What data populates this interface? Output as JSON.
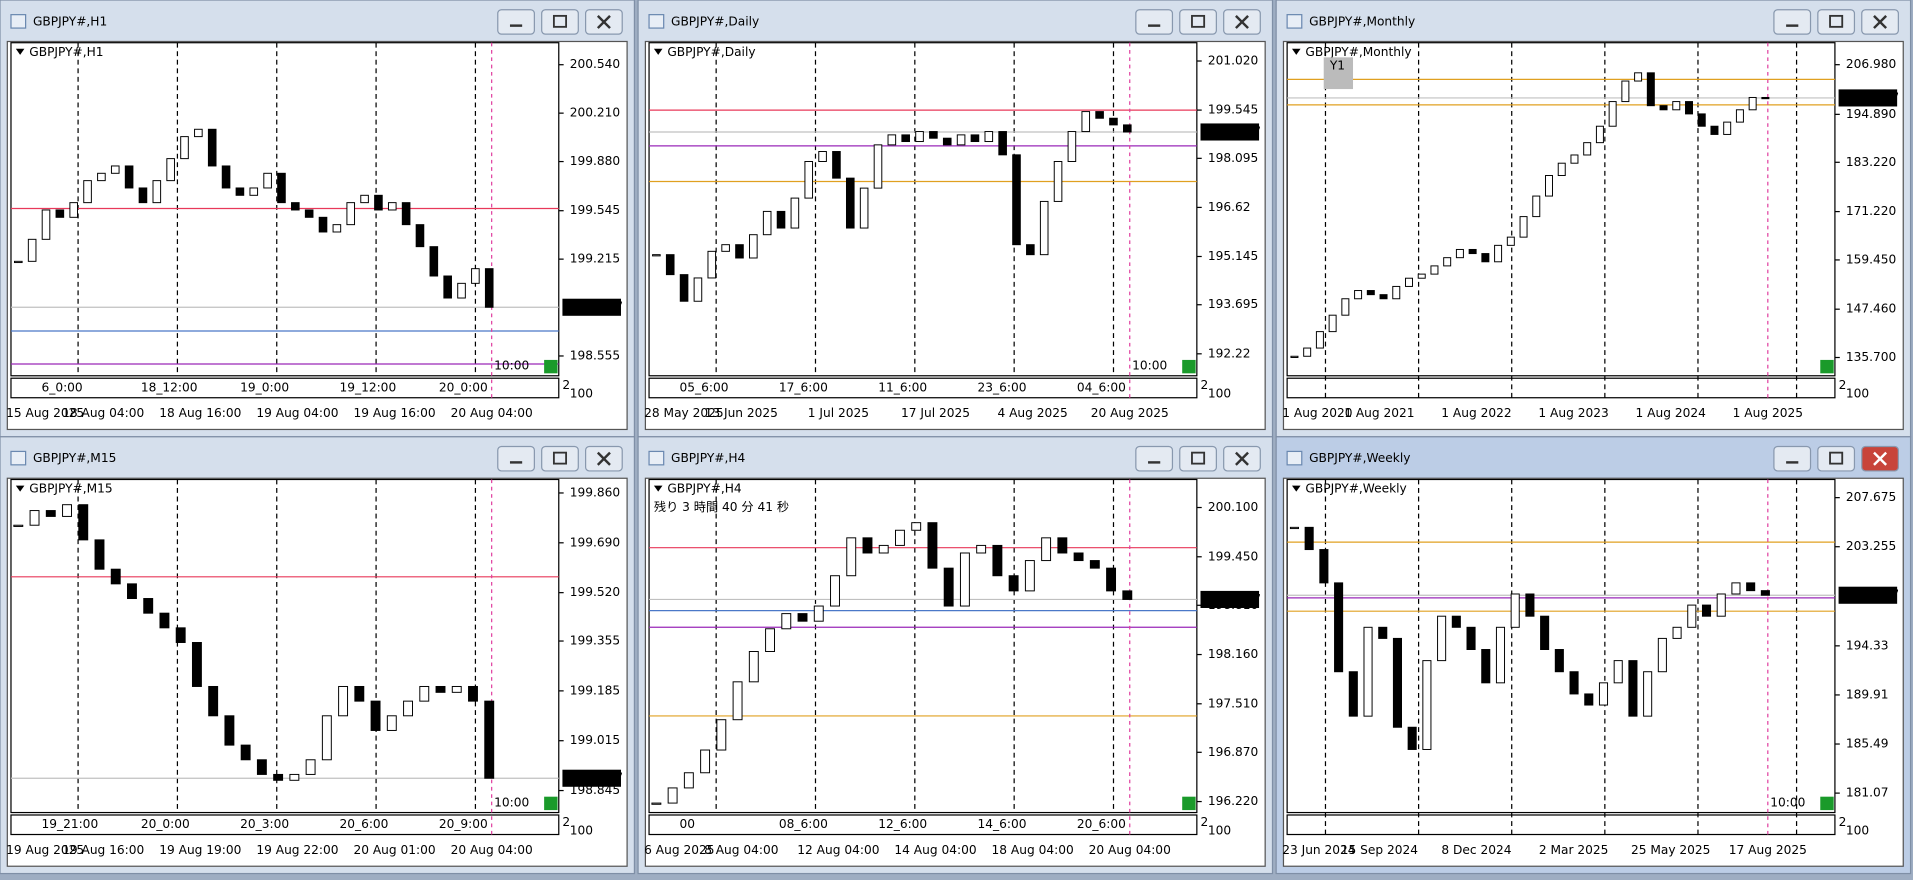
{
  "windows": [
    {
      "title": "GBPJPY#,H1",
      "active": false,
      "ylim": [
        198.42,
        200.69
      ],
      "yticks": [
        {
          "value": 200.54,
          "label": "200.540"
        },
        {
          "value": 200.21,
          "label": "200.210"
        },
        {
          "value": 199.88,
          "label": "199.880"
        },
        {
          "value": 199.545,
          "label": "199.545"
        },
        {
          "value": 199.215,
          "label": "199.215"
        },
        {
          "value": 198.555,
          "label": "198.555"
        }
      ],
      "current_price": 198.887,
      "levels": [
        {
          "value": 199.56,
          "color": "#e8385a"
        },
        {
          "value": 198.725,
          "color": "#4a78c8"
        },
        {
          "value": 198.5,
          "color": "#9a28b8"
        }
      ],
      "closes": [
        199.2,
        199.35,
        199.55,
        199.5,
        199.6,
        199.75,
        199.8,
        199.85,
        199.7,
        199.6,
        199.75,
        199.9,
        200.05,
        200.1,
        199.85,
        199.7,
        199.65,
        199.7,
        199.8,
        199.6,
        199.55,
        199.5,
        199.4,
        199.45,
        199.6,
        199.65,
        199.55,
        199.6,
        199.45,
        199.3,
        199.1,
        198.95,
        199.05,
        199.15,
        198.887
      ],
      "inner_time_labels": [
        "6_0:00",
        "18_12:00",
        "19_0:00",
        "19_12:00",
        "20_0:00"
      ],
      "time_labels": [
        "15 Aug 2025",
        "18 Aug 04:00",
        "18 Aug 16:00",
        "19 Aug 04:00",
        "19 Aug 16:00",
        "20 Aug 04:00"
      ],
      "timer": "10:00",
      "corner_labels": [
        "2",
        "100"
      ]
    },
    {
      "title": "GBPJPY#,Daily",
      "active": false,
      "ylim": [
        191.56,
        201.57
      ],
      "yticks": [
        {
          "value": 201.02,
          "label": "201.020"
        },
        199.545,
        198.095,
        196.62,
        195.145,
        193.695,
        192.22
      ],
      "current_price": 198.887,
      "levels": [
        {
          "value": 199.545,
          "color": "#e8385a"
        },
        {
          "value": 198.47,
          "color": "#9a28b8"
        },
        {
          "value": 197.4,
          "color": "#e0a020"
        }
      ],
      "closes": [
        195.2,
        194.6,
        193.8,
        194.5,
        195.3,
        195.5,
        195.1,
        195.8,
        196.5,
        196.0,
        196.9,
        198.0,
        198.3,
        197.5,
        196.0,
        197.2,
        198.5,
        198.8,
        198.6,
        198.9,
        198.7,
        198.5,
        198.8,
        198.6,
        198.9,
        198.2,
        195.5,
        195.2,
        196.8,
        198.0,
        198.9,
        199.5,
        199.3,
        199.1,
        198.887
      ],
      "inner_time_labels": [
        "05_6:00",
        "17_6:00",
        "11_6:00",
        "23_6:00",
        "04_6:00"
      ],
      "time_labels": [
        "28 May 2025",
        "13 Jun 2025",
        "1 Jul 2025",
        "17 Jul 2025",
        "4 Aug 2025",
        "20 Aug 2025"
      ],
      "timer": "10:00",
      "corner_labels": [
        "2",
        "100"
      ]
    },
    {
      "title": "GBPJPY#,Monthly",
      "active": false,
      "ylim": [
        131.25,
        212.33
      ],
      "yticks": [
        {
          "value": 206.98,
          "label": "206.980"
        },
        {
          "value": 194.89,
          "label": "194.890"
        },
        {
          "value": 183.22,
          "label": "183.220"
        },
        {
          "value": 171.22,
          "label": "171.220"
        },
        {
          "value": 159.45,
          "label": "159.450"
        },
        {
          "value": 147.46,
          "label": "147.460"
        },
        {
          "value": 135.7,
          "label": "135.700"
        }
      ],
      "current_price": 198.887,
      "levels": [
        {
          "value": 203.4,
          "color": "#e0a020"
        },
        {
          "value": 197.2,
          "color": "#e0a020"
        }
      ],
      "closes": [
        136,
        138,
        142,
        146,
        150,
        152,
        151,
        150,
        153,
        155,
        156,
        158,
        160,
        162,
        161,
        159,
        163,
        165,
        170,
        175,
        180,
        183,
        185,
        188,
        192,
        198,
        203,
        205,
        197,
        196,
        198,
        195,
        192,
        190,
        193,
        196,
        199,
        198.887
      ],
      "inner_time_labels": [],
      "time_labels": [
        "1 Aug 2020",
        "1 Aug 2021",
        "1 Aug 2022",
        "1 Aug 2023",
        "1 Aug 2024",
        "1 Aug 2025"
      ],
      "badge": "Y1",
      "corner_labels": [
        "2",
        "100"
      ]
    },
    {
      "title": "GBPJPY#,M15",
      "active": false,
      "ylim": [
        198.77,
        199.906
      ],
      "yticks": [
        {
          "value": 199.86,
          "label": "199.860"
        },
        {
          "value": 199.69,
          "label": "199.690"
        },
        {
          "value": 199.52,
          "label": "199.520"
        },
        199.355,
        199.185,
        199.015,
        198.845
      ],
      "current_price": 198.887,
      "levels": [
        {
          "value": 199.574,
          "color": "#e8385a"
        }
      ],
      "closes": [
        199.75,
        199.8,
        199.78,
        199.82,
        199.7,
        199.6,
        199.55,
        199.5,
        199.45,
        199.4,
        199.35,
        199.2,
        199.1,
        199.0,
        198.95,
        198.9,
        198.88,
        198.9,
        198.95,
        199.1,
        199.2,
        199.15,
        199.05,
        199.1,
        199.15,
        199.2,
        199.18,
        199.2,
        199.15,
        198.887
      ],
      "inner_time_labels": [
        "19_21:00",
        "20_0:00",
        "20_3:00",
        "20_6:00",
        "20_9:00"
      ],
      "time_labels": [
        "19 Aug 2025",
        "19 Aug 16:00",
        "19 Aug 19:00",
        "19 Aug 22:00",
        "20 Aug 01:00",
        "20 Aug 04:00"
      ],
      "timer": "10:00",
      "corner_labels": [
        "2",
        "100"
      ]
    },
    {
      "title": "GBPJPY#,H4",
      "active": false,
      "ylim": [
        196.075,
        200.47
      ],
      "yticks": [
        {
          "value": 200.1,
          "label": "200.100"
        },
        {
          "value": 199.45,
          "label": "199.450"
        },
        {
          "value": 198.81,
          "label": "198.810"
        },
        {
          "value": 198.16,
          "label": "198.160"
        },
        {
          "value": 197.51,
          "label": "197.510"
        },
        {
          "value": 196.87,
          "label": "196.870"
        },
        {
          "value": 196.22,
          "label": "196.220"
        }
      ],
      "current_price": 198.887,
      "levels": [
        {
          "value": 199.57,
          "color": "#e8385a"
        },
        {
          "value": 198.52,
          "color": "#9a28b8"
        },
        {
          "value": 197.35,
          "color": "#e0a020"
        },
        {
          "value": 198.74,
          "color": "#4a78c8"
        }
      ],
      "closes": [
        196.2,
        196.4,
        196.6,
        196.9,
        197.3,
        197.8,
        198.2,
        198.5,
        198.7,
        198.6,
        198.8,
        199.2,
        199.7,
        199.5,
        199.6,
        199.8,
        199.9,
        199.3,
        198.8,
        199.5,
        199.6,
        199.2,
        199.0,
        199.4,
        199.7,
        199.5,
        199.4,
        199.3,
        199.0,
        198.887
      ],
      "inner_time_labels": [
        "00",
        "08_6:00",
        "12_6:00",
        "14_6:00",
        "20_6:00"
      ],
      "time_labels": [
        "6 Aug 2025",
        "8 Aug 04:00",
        "12 Aug 04:00",
        "14 Aug 04:00",
        "18 Aug 04:00",
        "20 Aug 04:00"
      ],
      "countdown": "残り 3 時間 40 分 41 秒",
      "corner_labels": [
        "2",
        "100"
      ]
    },
    {
      "title": "GBPJPY#,Weekly",
      "active": true,
      "ylim": [
        179.32,
        209.31
      ],
      "yticks": [
        207.675,
        203.255,
        194.33,
        189.91,
        185.49,
        181.07
      ],
      "current_price": 198.887,
      "levels": [
        {
          "value": 203.67,
          "color": "#e0a020"
        },
        {
          "value": 197.45,
          "color": "#e0a020"
        },
        {
          "value": 198.65,
          "color": "#9a28b8"
        }
      ],
      "closes": [
        205,
        203,
        200,
        192,
        188,
        196,
        195,
        187,
        185,
        193,
        197,
        196,
        194,
        191,
        196,
        199,
        197,
        194,
        192,
        190,
        189,
        191,
        193,
        188,
        192,
        195,
        196,
        198,
        197,
        199,
        200,
        199.3,
        198.887
      ],
      "inner_time_labels": [],
      "time_labels": [
        "23 Jun 2024",
        "15 Sep 2024",
        "8 Dec 2024",
        "2 Mar 2025",
        "25 May 2025",
        "17 Aug 2025"
      ],
      "timer": "10:00",
      "corner_labels": [
        "2",
        "100"
      ]
    }
  ]
}
